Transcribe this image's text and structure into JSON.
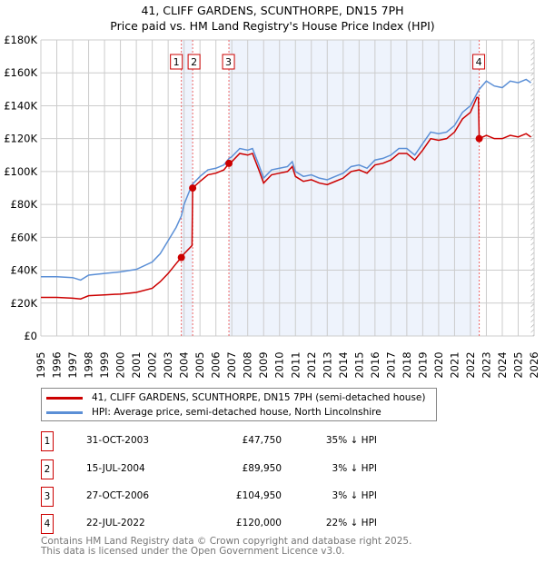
{
  "chart_data": {
    "type": "line",
    "title": "41, CLIFF GARDENS, SCUNTHORPE, DN15 7PH",
    "subtitle": "Price paid vs. HM Land Registry's House Price Index (HPI)",
    "xlim": [
      1995,
      2026
    ],
    "ylim": [
      0,
      180000
    ],
    "y_ticks": [
      {
        "v": 0,
        "label": "£0"
      },
      {
        "v": 20000,
        "label": "£20K"
      },
      {
        "v": 40000,
        "label": "£40K"
      },
      {
        "v": 60000,
        "label": "£60K"
      },
      {
        "v": 80000,
        "label": "£80K"
      },
      {
        "v": 100000,
        "label": "£100K"
      },
      {
        "v": 120000,
        "label": "£120K"
      },
      {
        "v": 140000,
        "label": "£140K"
      },
      {
        "v": 160000,
        "label": "£160K"
      },
      {
        "v": 180000,
        "label": "£180K"
      }
    ],
    "x_ticks": [
      "1995",
      "1996",
      "1997",
      "1998",
      "1999",
      "2000",
      "2001",
      "2002",
      "2003",
      "2004",
      "2005",
      "2006",
      "2007",
      "2008",
      "2009",
      "2010",
      "2011",
      "2012",
      "2013",
      "2014",
      "2015",
      "2016",
      "2017",
      "2018",
      "2019",
      "2020",
      "2021",
      "2022",
      "2023",
      "2024",
      "2025",
      "2026"
    ],
    "grid": true,
    "series": [
      {
        "name": "41, CLIFF GARDENS, SCUNTHORPE, DN15 7PH (semi-detached house)",
        "color": "#cc0000",
        "points": [
          [
            1995,
            23500
          ],
          [
            1996,
            23500
          ],
          [
            1997,
            23000
          ],
          [
            1997.5,
            22500
          ],
          [
            1998,
            24500
          ],
          [
            1999,
            25000
          ],
          [
            2000,
            25500
          ],
          [
            2001,
            26500
          ],
          [
            2002,
            29000
          ],
          [
            2002.5,
            33000
          ],
          [
            2003,
            38000
          ],
          [
            2003.5,
            44000
          ],
          [
            2003.83,
            47750
          ],
          [
            2004,
            50000
          ],
          [
            2004.5,
            55000
          ],
          [
            2004.54,
            89950
          ],
          [
            2005,
            94000
          ],
          [
            2005.5,
            98000
          ],
          [
            2006,
            99000
          ],
          [
            2006.5,
            101000
          ],
          [
            2006.83,
            104950
          ],
          [
            2007,
            106000
          ],
          [
            2007.5,
            111000
          ],
          [
            2008,
            110000
          ],
          [
            2008.3,
            111000
          ],
          [
            2008.7,
            101000
          ],
          [
            2009,
            93000
          ],
          [
            2009.5,
            98000
          ],
          [
            2010,
            99000
          ],
          [
            2010.5,
            100000
          ],
          [
            2010.8,
            103000
          ],
          [
            2011,
            97000
          ],
          [
            2011.5,
            94000
          ],
          [
            2012,
            95000
          ],
          [
            2012.5,
            93000
          ],
          [
            2013,
            92000
          ],
          [
            2013.5,
            94000
          ],
          [
            2014,
            96000
          ],
          [
            2014.5,
            100000
          ],
          [
            2015,
            101000
          ],
          [
            2015.5,
            99000
          ],
          [
            2016,
            104000
          ],
          [
            2016.5,
            105000
          ],
          [
            2017,
            107000
          ],
          [
            2017.5,
            111000
          ],
          [
            2018,
            111000
          ],
          [
            2018.5,
            107000
          ],
          [
            2019,
            113000
          ],
          [
            2019.5,
            120000
          ],
          [
            2020,
            119000
          ],
          [
            2020.5,
            120000
          ],
          [
            2021,
            124000
          ],
          [
            2021.5,
            132000
          ],
          [
            2022,
            136000
          ],
          [
            2022.4,
            145000
          ],
          [
            2022.5,
            145000
          ],
          [
            2022.55,
            120000
          ],
          [
            2023,
            122000
          ],
          [
            2023.5,
            120000
          ],
          [
            2024,
            120000
          ],
          [
            2024.5,
            122000
          ],
          [
            2025,
            121000
          ],
          [
            2025.5,
            123000
          ],
          [
            2025.8,
            121000
          ]
        ]
      },
      {
        "name": "HPI: Average price, semi-detached house, North Lincolnshire",
        "color": "#5b8fd6",
        "points": [
          [
            1995,
            36000
          ],
          [
            1996,
            36000
          ],
          [
            1997,
            35500
          ],
          [
            1997.5,
            34000
          ],
          [
            1998,
            37000
          ],
          [
            1999,
            38000
          ],
          [
            2000,
            39000
          ],
          [
            2001,
            40500
          ],
          [
            2002,
            45000
          ],
          [
            2002.5,
            50000
          ],
          [
            2003,
            58000
          ],
          [
            2003.5,
            66000
          ],
          [
            2003.83,
            73000
          ],
          [
            2004,
            80000
          ],
          [
            2004.5,
            92000
          ],
          [
            2005,
            97000
          ],
          [
            2005.5,
            101000
          ],
          [
            2006,
            102000
          ],
          [
            2006.5,
            104000
          ],
          [
            2006.83,
            108000
          ],
          [
            2007,
            109000
          ],
          [
            2007.5,
            114000
          ],
          [
            2008,
            113000
          ],
          [
            2008.3,
            114000
          ],
          [
            2008.7,
            104000
          ],
          [
            2009,
            96000
          ],
          [
            2009.5,
            101000
          ],
          [
            2010,
            102000
          ],
          [
            2010.5,
            103000
          ],
          [
            2010.8,
            106000
          ],
          [
            2011,
            100000
          ],
          [
            2011.5,
            97000
          ],
          [
            2012,
            98000
          ],
          [
            2012.5,
            96000
          ],
          [
            2013,
            95000
          ],
          [
            2013.5,
            97000
          ],
          [
            2014,
            99000
          ],
          [
            2014.5,
            103000
          ],
          [
            2015,
            104000
          ],
          [
            2015.5,
            102000
          ],
          [
            2016,
            107000
          ],
          [
            2016.5,
            108000
          ],
          [
            2017,
            110000
          ],
          [
            2017.5,
            114000
          ],
          [
            2018,
            114000
          ],
          [
            2018.5,
            110000
          ],
          [
            2019,
            117000
          ],
          [
            2019.5,
            124000
          ],
          [
            2020,
            123000
          ],
          [
            2020.5,
            124000
          ],
          [
            2021,
            128000
          ],
          [
            2021.5,
            136000
          ],
          [
            2022,
            140000
          ],
          [
            2022.55,
            150000
          ],
          [
            2023,
            155000
          ],
          [
            2023.5,
            152000
          ],
          [
            2024,
            151000
          ],
          [
            2024.5,
            155000
          ],
          [
            2025,
            154000
          ],
          [
            2025.5,
            156000
          ],
          [
            2025.8,
            154000
          ]
        ]
      }
    ],
    "sales": [
      {
        "n": "1",
        "x": 2003.83,
        "price": 47750
      },
      {
        "n": "2",
        "x": 2004.54,
        "price": 89950
      },
      {
        "n": "3",
        "x": 2006.82,
        "price": 104950
      },
      {
        "n": "4",
        "x": 2022.55,
        "price": 120000
      }
    ],
    "shaded_ranges": [
      [
        2003.83,
        2004.54
      ],
      [
        2006.82,
        2022.55
      ]
    ],
    "hatched_from": 2025.8
  },
  "legend": {
    "property": "41, CLIFF GARDENS, SCUNTHORPE, DN15 7PH (semi-detached house)",
    "hpi": "HPI: Average price, semi-detached house, North Lincolnshire"
  },
  "table": [
    {
      "n": "1",
      "date": "31-OCT-2003",
      "price": "£47,750",
      "hpi": "35% ↓ HPI"
    },
    {
      "n": "2",
      "date": "15-JUL-2004",
      "price": "£89,950",
      "hpi": "3% ↓ HPI"
    },
    {
      "n": "3",
      "date": "27-OCT-2006",
      "price": "£104,950",
      "hpi": "3% ↓ HPI"
    },
    {
      "n": "4",
      "date": "22-JUL-2022",
      "price": "£120,000",
      "hpi": "22% ↓ HPI"
    }
  ],
  "footer": [
    "Contains HM Land Registry data © Crown copyright and database right 2025.",
    "This data is licensed under the Open Government Licence v3.0."
  ]
}
